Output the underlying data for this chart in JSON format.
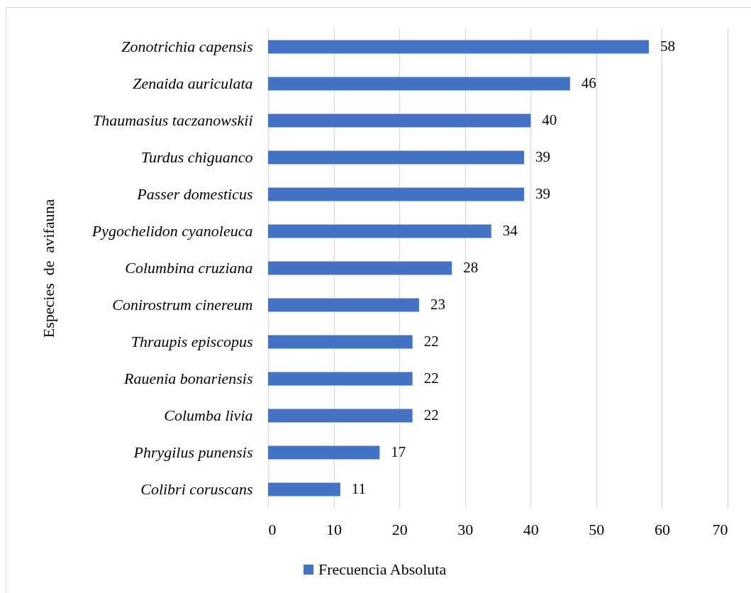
{
  "chart_data": {
    "type": "bar",
    "orientation": "horizontal",
    "ylabel": "Especies  de  avifauna",
    "categories": [
      "Zonotrichia capensis",
      "Zenaida auriculata",
      "Thaumasius taczanowskii",
      "Turdus chiguanco",
      "Passer domesticus",
      "Pygochelidon cyanoleuca",
      "Columbina cruziana",
      "Conirostrum cinereum",
      "Thraupis episcopus",
      "Rauenia bonariensis",
      "Columba livia",
      "Phrygilus punensis",
      "Colibri coruscans"
    ],
    "series": [
      {
        "name": "Frecuencia Absoluta",
        "color": "#4472c4",
        "values": [
          58,
          46,
          40,
          39,
          39,
          34,
          28,
          23,
          22,
          22,
          22,
          17,
          11
        ]
      }
    ],
    "xlim": [
      0,
      70
    ],
    "xticks": [
      0,
      10,
      20,
      30,
      40,
      50,
      60,
      70
    ],
    "grid": "x",
    "legend": "bottom",
    "data_labels": true
  }
}
